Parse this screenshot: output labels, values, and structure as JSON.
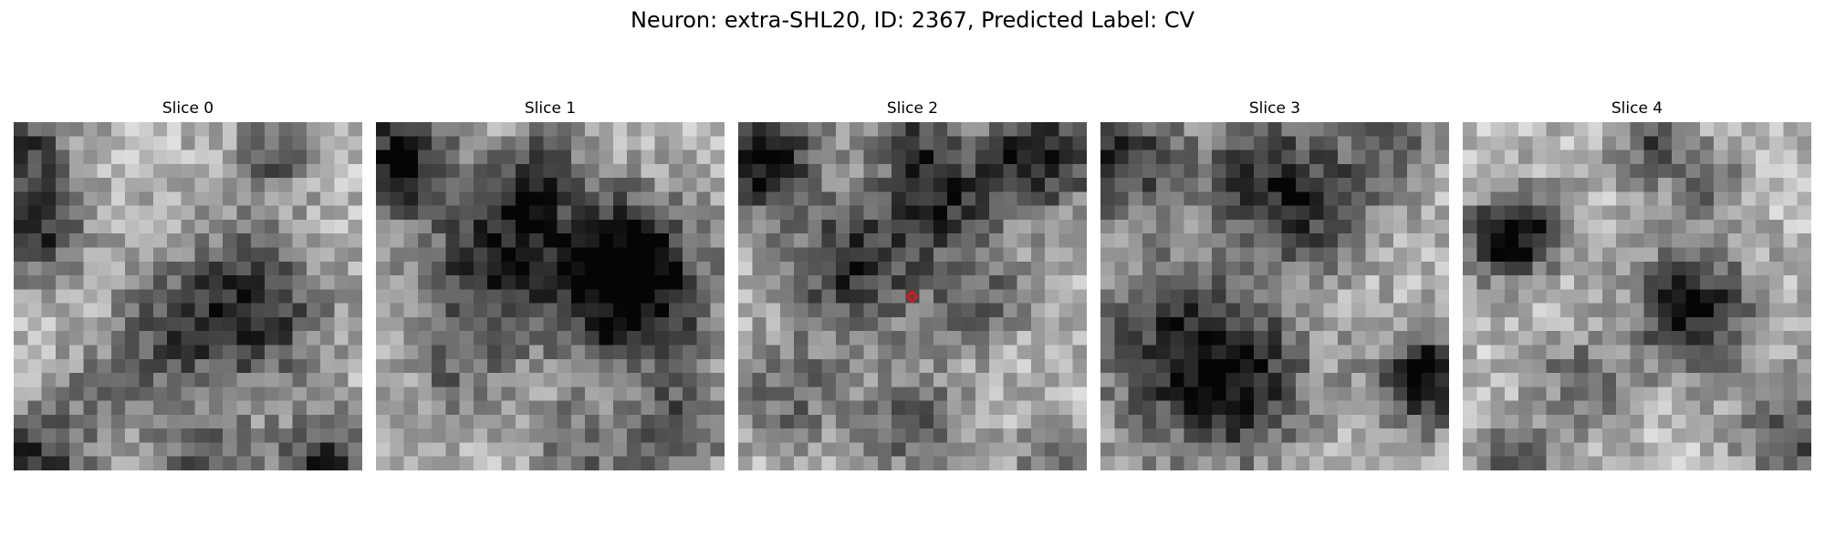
{
  "figure": {
    "title": "Neuron: extra-SHL20, ID: 2367, Predicted Label: CV"
  },
  "panels": [
    {
      "title": "Slice 0"
    },
    {
      "title": "Slice 1"
    },
    {
      "title": "Slice 2"
    },
    {
      "title": "Slice 3"
    },
    {
      "title": "Slice 4"
    }
  ],
  "image_grid": {
    "rows": 25,
    "cols": 25,
    "colormap": "gray"
  },
  "marker": {
    "slice_index": 2,
    "row": 12,
    "col": 12,
    "shape": "diamond-outline",
    "color": "#ee1111"
  }
}
